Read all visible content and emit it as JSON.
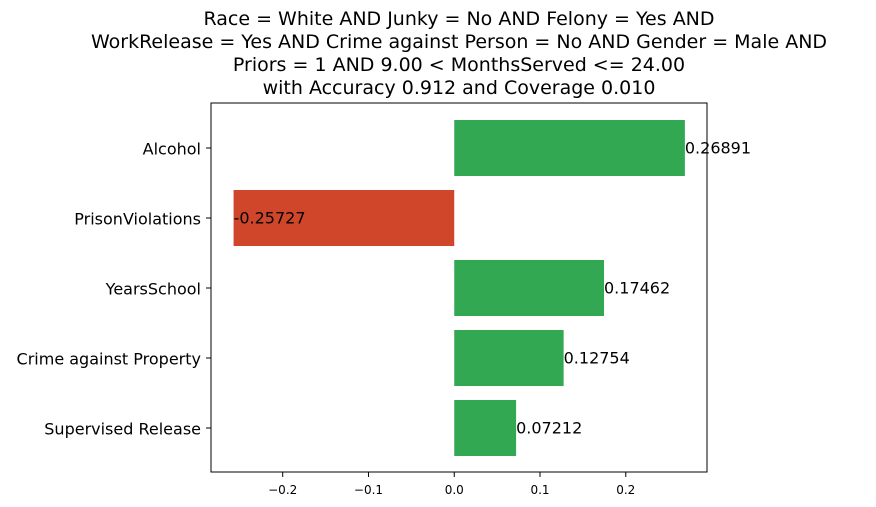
{
  "chart_data": {
    "type": "bar",
    "orientation": "horizontal",
    "title_lines": [
      "Race = White AND Junky = No AND Felony = Yes AND",
      "WorkRelease = Yes AND Crime against Person = No AND Gender = Male AND",
      "Priors = 1 AND 9.00 < MonthsServed <= 24.00",
      "with Accuracy 0.912 and Coverage 0.010"
    ],
    "categories": [
      "Alcohol",
      "PrisonViolations",
      "YearsSchool",
      "Crime against Property",
      "Supervised Release"
    ],
    "values": [
      0.26891,
      -0.25727,
      0.17462,
      0.12754,
      0.07212
    ],
    "value_labels": [
      "0.26891",
      "-0.25727",
      "0.17462",
      "0.12754",
      "0.07212"
    ],
    "x_ticks": [
      -0.2,
      -0.1,
      0.0,
      0.1,
      0.2
    ],
    "x_tick_labels": [
      "−0.2",
      "−0.1",
      "0.0",
      "0.1",
      "0.2"
    ],
    "xlim": [
      -0.2836,
      0.2947
    ],
    "xlabel": "",
    "ylabel": "",
    "grid": false,
    "colors": {
      "positive": "#33a852",
      "negative": "#d0462b"
    }
  }
}
